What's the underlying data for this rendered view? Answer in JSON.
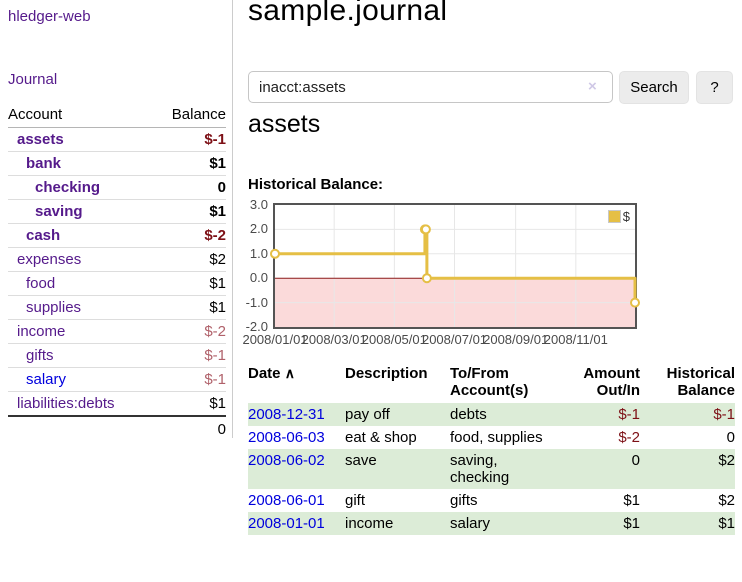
{
  "colors": {
    "link-visited-purple": "#551a8b",
    "link-blue": "#0000dd",
    "negative-strong": "#7d1016",
    "negative-dim": "#b0616a",
    "row-stripe-green": "#dcecd7",
    "chart-line-gold": "#e5bf45",
    "chart-negative-bg": "#fbdada",
    "chart-zero-line": "#8b1a1a",
    "chart-grid": "#e7e7e7",
    "button-bg": "#ececec"
  },
  "sidebar": {
    "brand": "hledger-web",
    "nav_journal": "Journal",
    "headers": {
      "account": "Account",
      "balance": "Balance"
    },
    "accounts": [
      {
        "name": "assets",
        "depth": 0,
        "bold": true,
        "balance": "$-1",
        "visited": true
      },
      {
        "name": "bank",
        "depth": 1,
        "bold": true,
        "balance": "$1",
        "visited": true
      },
      {
        "name": "checking",
        "depth": 2,
        "bold": true,
        "balance": "0",
        "visited": true
      },
      {
        "name": "saving",
        "depth": 2,
        "bold": true,
        "balance": "$1",
        "visited": true
      },
      {
        "name": "cash",
        "depth": 1,
        "bold": true,
        "balance": "$-2",
        "visited": true
      },
      {
        "name": "expenses",
        "depth": 0,
        "bold": false,
        "balance": "$2",
        "visited": true
      },
      {
        "name": "food",
        "depth": 1,
        "bold": false,
        "balance": "$1",
        "visited": true
      },
      {
        "name": "supplies",
        "depth": 1,
        "bold": false,
        "balance": "$1",
        "visited": true
      },
      {
        "name": "income",
        "depth": 0,
        "bold": false,
        "balance": "$-2",
        "visited": true
      },
      {
        "name": "gifts",
        "depth": 1,
        "bold": false,
        "balance": "$-1",
        "visited": true
      },
      {
        "name": "salary",
        "depth": 1,
        "bold": false,
        "balance": "$-1",
        "visited": false
      },
      {
        "name": "liabilities:debts",
        "depth": 0,
        "bold": false,
        "balance": "$1",
        "visited": true
      }
    ],
    "total": "0"
  },
  "header": {
    "title": "sample.journal"
  },
  "search": {
    "value": "inacct:assets",
    "clear_icon": "×",
    "button_label": "Search",
    "help_label": "?"
  },
  "account_page": {
    "heading": "assets",
    "chart_label": "Historical Balance:"
  },
  "chart_data": {
    "type": "line",
    "style": "step",
    "title": "Historical Balance",
    "x_domain": [
      "2008-01-01",
      "2008-12-31"
    ],
    "ylim": [
      -2,
      3
    ],
    "y_ticks": [
      3.0,
      2.0,
      1.0,
      0.0,
      -1.0,
      -2.0
    ],
    "x_ticks": [
      "2008/01/01",
      "2008/03/01",
      "2008/05/01",
      "2008/07/01",
      "2008/09/01",
      "2008/11/01"
    ],
    "series": [
      {
        "name": "$",
        "points": [
          [
            "2008-01-01",
            1
          ],
          [
            "2008-06-01",
            2
          ],
          [
            "2008-06-02",
            2
          ],
          [
            "2008-06-03",
            0
          ],
          [
            "2008-12-31",
            -1
          ]
        ]
      }
    ],
    "legend": {
      "label": "$",
      "position": "top-right"
    },
    "negative_region_shaded": true,
    "grid": true
  },
  "register": {
    "headers": {
      "date": "Date",
      "sort_icon": "∧",
      "description": "Description",
      "accounts": "To/From Account(s)",
      "amount": "Amount Out/In",
      "balance": "Historical Balance"
    },
    "rows": [
      {
        "date": "2008-12-31",
        "description": "pay off",
        "accounts": "debts",
        "amount": "$-1",
        "balance": "$-1"
      },
      {
        "date": "2008-06-03",
        "description": "eat & shop",
        "accounts": "food, supplies",
        "amount": "$-2",
        "balance": "0"
      },
      {
        "date": "2008-06-02",
        "description": "save",
        "accounts": "saving, checking",
        "amount": "0",
        "balance": "$2"
      },
      {
        "date": "2008-06-01",
        "description": "gift",
        "accounts": "gifts",
        "amount": "$1",
        "balance": "$2"
      },
      {
        "date": "2008-01-01",
        "description": "income",
        "accounts": "salary",
        "amount": "$1",
        "balance": "$1"
      }
    ]
  }
}
